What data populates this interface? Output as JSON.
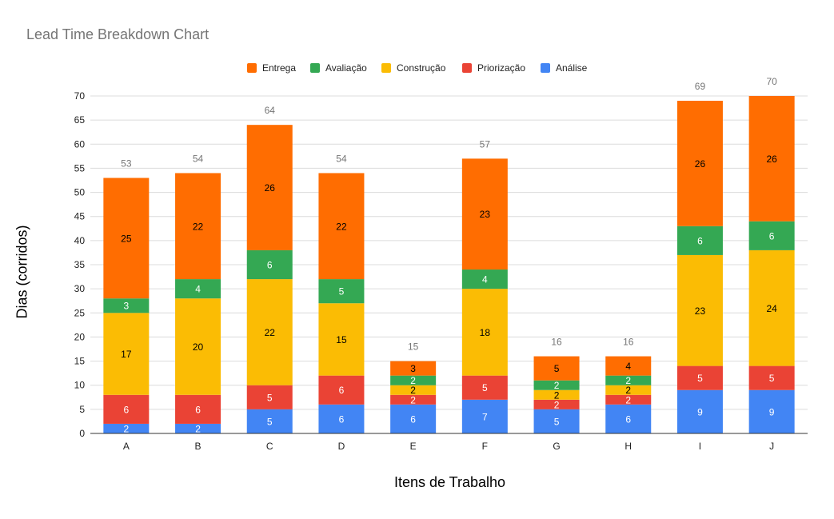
{
  "chart_data": {
    "type": "bar",
    "stacked": true,
    "title": "Lead Time Breakdown Chart",
    "xlabel": "Itens de Trabalho",
    "ylabel": "Dias (corridos)",
    "ylim": [
      0,
      70
    ],
    "yticks": [
      0,
      5,
      10,
      15,
      20,
      25,
      30,
      35,
      40,
      45,
      50,
      55,
      60,
      65,
      70
    ],
    "grid": true,
    "legend_position": "top",
    "categories": [
      "A",
      "B",
      "C",
      "D",
      "E",
      "F",
      "G",
      "H",
      "I",
      "J"
    ],
    "series": [
      {
        "name": "Análise",
        "color": "#4285f4",
        "label_color": "#ffffff",
        "values": [
          2,
          2,
          5,
          6,
          6,
          7,
          5,
          6,
          9,
          9
        ]
      },
      {
        "name": "Priorização",
        "color": "#ea4335",
        "label_color": "#ffffff",
        "values": [
          6,
          6,
          5,
          6,
          2,
          5,
          2,
          2,
          5,
          5
        ]
      },
      {
        "name": "Construção",
        "color": "#fbbc04",
        "label_color": "#000000",
        "values": [
          17,
          20,
          22,
          15,
          2,
          18,
          2,
          2,
          23,
          24
        ]
      },
      {
        "name": "Avaliação",
        "color": "#34a853",
        "label_color": "#ffffff",
        "values": [
          3,
          4,
          6,
          5,
          2,
          4,
          2,
          2,
          6,
          6
        ]
      },
      {
        "name": "Entrega",
        "color": "#ff6d01",
        "label_color": "#000000",
        "values": [
          25,
          22,
          26,
          22,
          3,
          23,
          5,
          4,
          26,
          26
        ]
      }
    ],
    "totals": [
      53,
      54,
      64,
      54,
      15,
      57,
      16,
      16,
      69,
      70
    ],
    "legend_order": [
      "Entrega",
      "Avaliação",
      "Construção",
      "Priorização",
      "Análise"
    ]
  }
}
